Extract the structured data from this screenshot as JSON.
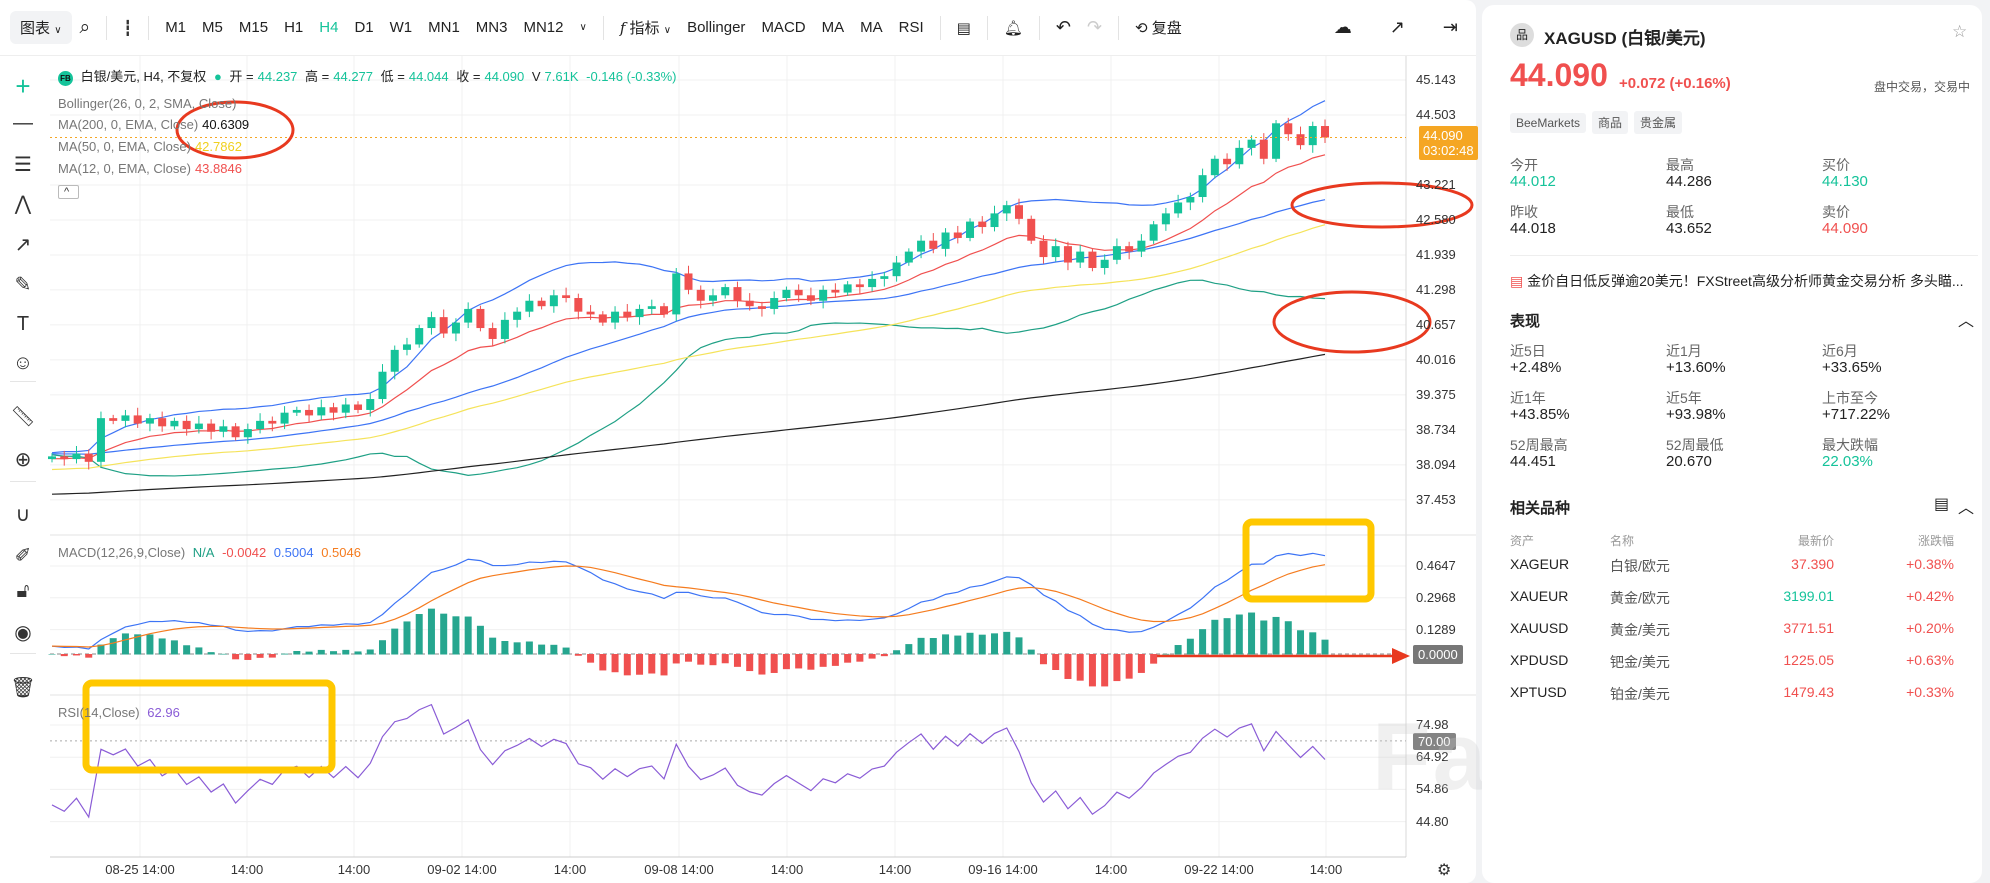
{
  "toolbar": {
    "chart_menu": "图表",
    "timeframes": [
      "M1",
      "M5",
      "M15",
      "H1",
      "H4",
      "D1",
      "W1",
      "MN1",
      "MN3",
      "MN12"
    ],
    "active_timeframe": "H4",
    "indicators_label": "指标",
    "indicator_buttons": [
      "Bollinger",
      "MACD",
      "MA",
      "MA",
      "RSI"
    ],
    "replay_label": "复盘"
  },
  "legend": {
    "badge": "FB",
    "symbol": "白银/美元, H4, 不复权",
    "open_label": "开 =",
    "open": "44.237",
    "high_label": "高 =",
    "high": "44.277",
    "low_label": "低 =",
    "low": "44.044",
    "close_label": "收 =",
    "close": "44.090",
    "volume_label": "V",
    "volume": "7.61K",
    "change": "-0.146 (-0.33%)",
    "bollinger": "Bollinger(26, 0, 2, SMA, Close)",
    "ma200_label": "MA(200, 0, EMA, Close)",
    "ma200_value": "40.6309",
    "ma50_label": "MA(50, 0, EMA, Close)",
    "ma50_value": "42.7862",
    "ma12_label": "MA(12, 0, EMA, Close)",
    "ma12_value": "43.8846",
    "collapse": "^"
  },
  "macd_legend": {
    "label": "MACD(12,26,9,Close)",
    "na": "N/A",
    "hist": "-0.0042",
    "macd": "0.5004",
    "signal": "0.5046"
  },
  "rsi_legend": {
    "label": "RSI(14,Close)",
    "value": "62.96"
  },
  "price_axis": [
    "45.143",
    "44.503",
    "43.221",
    "42.580",
    "41.939",
    "41.298",
    "40.657",
    "40.016",
    "39.375",
    "38.734",
    "38.094",
    "37.453"
  ],
  "last_price": {
    "price": "44.090",
    "countdown": "03:02:48"
  },
  "macd_axis": [
    "0.4647",
    "0.2968",
    "0.1289"
  ],
  "macd_zero": "0.0000",
  "rsi_axis": [
    "74.98",
    "64.92",
    "54.86",
    "44.80"
  ],
  "rsi_level": "70.00",
  "time_axis": [
    "08-25 14:00",
    "14:00",
    "14:00",
    "09-02 14:00",
    "14:00",
    "09-08 14:00",
    "14:00",
    "14:00",
    "09-16 14:00",
    "14:00",
    "09-22 14:00",
    "14:00"
  ],
  "watermark": "FastBull",
  "colors": {
    "up": "#15c39a",
    "down": "#f0504f",
    "bb": "#3d74f5",
    "bbmid": "#1fa085",
    "ma200": "#222222",
    "ma50": "#f5e35a",
    "ma12": "#f0504f",
    "macd": "#3d74f5",
    "signal": "#f57c1f",
    "rsi": "#8a5cd6",
    "accent": "#f5a623"
  },
  "chart_data": {
    "type": "candlestick",
    "symbol": "XAGUSD",
    "timeframe": "H4",
    "ylim": [
      37.2,
      45.4
    ],
    "closes": [
      38.25,
      38.2,
      38.3,
      38.15,
      38.95,
      38.9,
      39.0,
      38.85,
      38.95,
      38.8,
      38.9,
      38.75,
      38.85,
      38.7,
      38.8,
      38.6,
      38.75,
      38.9,
      38.85,
      39.05,
      39.1,
      39.0,
      39.15,
      39.05,
      39.2,
      39.1,
      39.3,
      39.8,
      40.2,
      40.3,
      40.6,
      40.8,
      40.5,
      40.7,
      40.95,
      40.6,
      40.4,
      40.75,
      40.9,
      41.1,
      41.0,
      41.2,
      41.15,
      40.9,
      40.85,
      40.7,
      40.9,
      40.8,
      40.95,
      41.0,
      40.85,
      41.6,
      41.3,
      41.1,
      41.2,
      41.35,
      41.1,
      41.0,
      40.95,
      41.15,
      41.3,
      41.2,
      41.1,
      41.3,
      41.25,
      41.4,
      41.35,
      41.5,
      41.55,
      41.8,
      42.0,
      42.2,
      42.05,
      42.35,
      42.25,
      42.55,
      42.45,
      42.7,
      42.85,
      42.6,
      42.2,
      41.9,
      42.1,
      41.8,
      42.0,
      41.7,
      41.85,
      42.1,
      42.0,
      42.2,
      42.5,
      42.7,
      42.9,
      43.0,
      43.4,
      43.7,
      43.6,
      43.9,
      44.05,
      43.7,
      44.35,
      44.15,
      43.95,
      44.3,
      44.09
    ],
    "ema_seeds": {
      "ma12": 38.2,
      "ma50": 38.0,
      "ma200": 37.55
    },
    "macd_ylim": [
      -0.15,
      0.56
    ],
    "rsi_ylim": [
      38,
      84
    ]
  },
  "right": {
    "symbol": "XAGUSD (白银/美元)",
    "price": "44.090",
    "change": "+0.072",
    "change_pct": "(+0.16%)",
    "status": "盘中交易，交易中",
    "tags": [
      "BeeMarkets",
      "商品",
      "贵金属"
    ],
    "stats": [
      {
        "label": "今开",
        "value": "44.012",
        "color": "#15c39a"
      },
      {
        "label": "最高",
        "value": "44.286",
        "color": "#222"
      },
      {
        "label": "买价",
        "value": "44.130",
        "color": "#15c39a"
      },
      {
        "label": "昨收",
        "value": "44.018",
        "color": "#222"
      },
      {
        "label": "最低",
        "value": "43.652",
        "color": "#222"
      },
      {
        "label": "卖价",
        "value": "44.090",
        "color": "#f0504f"
      }
    ],
    "news": "金价自日低反弹逾20美元！FXStreet高级分析师黄金交易分析 多头瞄...",
    "performance_title": "表现",
    "performance": [
      {
        "label": "近5日",
        "value": "+2.48%",
        "color": "#222"
      },
      {
        "label": "近1月",
        "value": "+13.60%",
        "color": "#222"
      },
      {
        "label": "近6月",
        "value": "+33.65%",
        "color": "#222"
      },
      {
        "label": "近1年",
        "value": "+43.85%",
        "color": "#222"
      },
      {
        "label": "近5年",
        "value": "+93.98%",
        "color": "#222"
      },
      {
        "label": "上市至今",
        "value": "+717.22%",
        "color": "#222"
      },
      {
        "label": "52周最高",
        "value": "44.451",
        "color": "#222"
      },
      {
        "label": "52周最低",
        "value": "20.670",
        "color": "#222"
      },
      {
        "label": "最大跌幅",
        "value": "22.03%",
        "color": "#15c39a"
      }
    ],
    "related_title": "相关品种",
    "related_headers": [
      "资产",
      "名称",
      "最新价",
      "涨跌幅"
    ],
    "related": [
      {
        "asset": "XAGEUR",
        "name": "白银/欧元",
        "price": "37.390",
        "price_color": "#f0504f",
        "change": "+0.38%"
      },
      {
        "asset": "XAUEUR",
        "name": "黄金/欧元",
        "price": "3199.01",
        "price_color": "#15c39a",
        "change": "+0.42%"
      },
      {
        "asset": "XAUUSD",
        "name": "黄金/美元",
        "price": "3771.51",
        "price_color": "#f0504f",
        "change": "+0.20%"
      },
      {
        "asset": "XPDUSD",
        "name": "钯金/美元",
        "price": "1225.05",
        "price_color": "#f0504f",
        "change": "+0.63%"
      },
      {
        "asset": "XPTUSD",
        "name": "铂金/美元",
        "price": "1479.43",
        "price_color": "#f0504f",
        "change": "+0.33%"
      }
    ]
  }
}
